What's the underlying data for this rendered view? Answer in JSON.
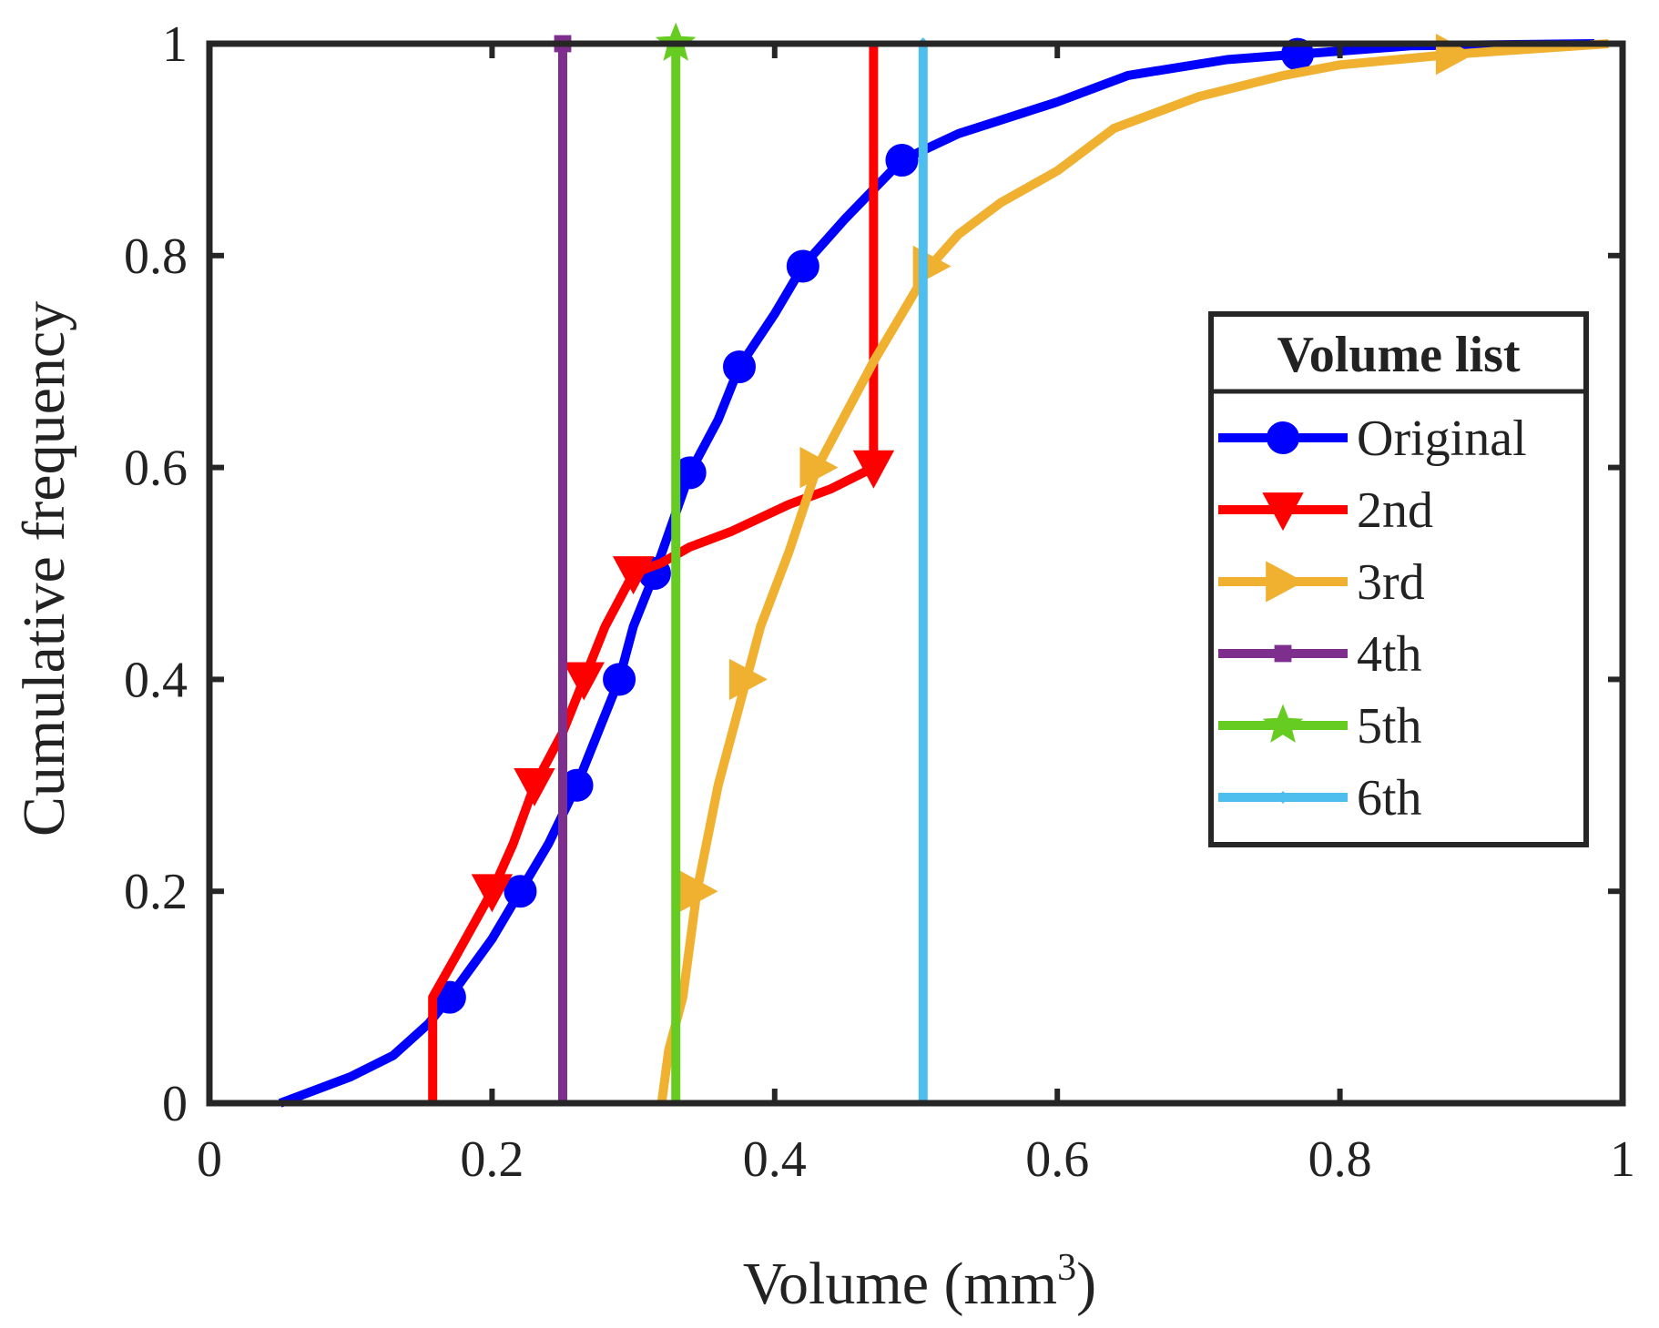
{
  "chart_data": {
    "type": "line",
    "title": "",
    "xlabel": "Volume (mm",
    "xlabel_sup": "3",
    "xlabel_close": ")",
    "ylabel": "Cumulative frequency",
    "xlim": [
      0,
      1
    ],
    "ylim": [
      0,
      1
    ],
    "x_ticks": [
      0,
      0.2,
      0.4,
      0.6,
      0.8,
      1
    ],
    "x_tick_labels": [
      "0",
      "0.2",
      "0.4",
      "0.6",
      "0.8",
      "1"
    ],
    "y_ticks": [
      0,
      0.2,
      0.4,
      0.6,
      0.8,
      1
    ],
    "y_tick_labels": [
      "0",
      "0.2",
      "0.4",
      "0.6",
      "0.8",
      "1"
    ],
    "grid": false,
    "legend": {
      "title": "Volume list",
      "position": "right-middle"
    },
    "series": [
      {
        "name": "Original",
        "color": "#0000ff",
        "marker": "circle",
        "points": [
          [
            0.05,
            0
          ],
          [
            0.07,
            0.01
          ],
          [
            0.1,
            0.025
          ],
          [
            0.13,
            0.045
          ],
          [
            0.155,
            0.075
          ],
          [
            0.17,
            0.1
          ],
          [
            0.2,
            0.155
          ],
          [
            0.22,
            0.2
          ],
          [
            0.24,
            0.245
          ],
          [
            0.26,
            0.3
          ],
          [
            0.275,
            0.35
          ],
          [
            0.29,
            0.4
          ],
          [
            0.3,
            0.45
          ],
          [
            0.315,
            0.5
          ],
          [
            0.34,
            0.595
          ],
          [
            0.36,
            0.645
          ],
          [
            0.375,
            0.695
          ],
          [
            0.4,
            0.745
          ],
          [
            0.42,
            0.79
          ],
          [
            0.45,
            0.835
          ],
          [
            0.49,
            0.89
          ],
          [
            0.53,
            0.915
          ],
          [
            0.6,
            0.945
          ],
          [
            0.65,
            0.97
          ],
          [
            0.72,
            0.985
          ],
          [
            0.77,
            0.99
          ],
          [
            0.85,
            0.998
          ],
          [
            0.98,
            1
          ]
        ],
        "markers": [
          [
            0.17,
            0.1
          ],
          [
            0.22,
            0.2
          ],
          [
            0.26,
            0.3
          ],
          [
            0.29,
            0.4
          ],
          [
            0.315,
            0.5
          ],
          [
            0.34,
            0.595
          ],
          [
            0.375,
            0.695
          ],
          [
            0.42,
            0.79
          ],
          [
            0.49,
            0.89
          ],
          [
            0.77,
            0.99
          ]
        ]
      },
      {
        "name": "2nd",
        "color": "#ff0000",
        "marker": "triangle-down",
        "points": [
          [
            0.158,
            0
          ],
          [
            0.158,
            0.1
          ],
          [
            0.175,
            0.14
          ],
          [
            0.2,
            0.2
          ],
          [
            0.215,
            0.245
          ],
          [
            0.23,
            0.3
          ],
          [
            0.25,
            0.35
          ],
          [
            0.265,
            0.4
          ],
          [
            0.28,
            0.45
          ],
          [
            0.3,
            0.5
          ],
          [
            0.32,
            0.51
          ],
          [
            0.34,
            0.525
          ],
          [
            0.37,
            0.54
          ],
          [
            0.41,
            0.565
          ],
          [
            0.44,
            0.58
          ],
          [
            0.47,
            0.6
          ],
          [
            0.47,
            1
          ]
        ],
        "markers": [
          [
            0.2,
            0.2
          ],
          [
            0.23,
            0.3
          ],
          [
            0.265,
            0.4
          ],
          [
            0.3,
            0.5
          ],
          [
            0.47,
            0.6
          ]
        ]
      },
      {
        "name": "3rd",
        "color": "#f0b030",
        "marker": "triangle-right",
        "points": [
          [
            0.32,
            0
          ],
          [
            0.325,
            0.05
          ],
          [
            0.335,
            0.1
          ],
          [
            0.345,
            0.2
          ],
          [
            0.36,
            0.3
          ],
          [
            0.38,
            0.4
          ],
          [
            0.39,
            0.45
          ],
          [
            0.41,
            0.52
          ],
          [
            0.43,
            0.6
          ],
          [
            0.45,
            0.65
          ],
          [
            0.47,
            0.7
          ],
          [
            0.49,
            0.745
          ],
          [
            0.51,
            0.79
          ],
          [
            0.53,
            0.82
          ],
          [
            0.56,
            0.85
          ],
          [
            0.6,
            0.88
          ],
          [
            0.64,
            0.92
          ],
          [
            0.7,
            0.95
          ],
          [
            0.76,
            0.97
          ],
          [
            0.8,
            0.98
          ],
          [
            0.88,
            0.99
          ],
          [
            0.99,
            1
          ]
        ],
        "markers": [
          [
            0.345,
            0.2
          ],
          [
            0.38,
            0.4
          ],
          [
            0.43,
            0.6
          ],
          [
            0.51,
            0.79
          ],
          [
            0.88,
            0.99
          ]
        ]
      },
      {
        "name": "4th",
        "color": "#7e2f8e",
        "marker": "square",
        "points": [
          [
            0.25,
            0
          ],
          [
            0.25,
            1
          ]
        ],
        "markers": [
          [
            0.25,
            1
          ]
        ]
      },
      {
        "name": "5th",
        "color": "#66cc22",
        "marker": "star",
        "points": [
          [
            0.33,
            0
          ],
          [
            0.33,
            1
          ]
        ],
        "markers": [
          [
            0.33,
            1
          ]
        ]
      },
      {
        "name": "6th",
        "color": "#4dbeee",
        "marker": "diamond",
        "points": [
          [
            0.505,
            0
          ],
          [
            0.505,
            1
          ]
        ],
        "markers": [
          [
            0.505,
            1
          ]
        ]
      }
    ]
  }
}
